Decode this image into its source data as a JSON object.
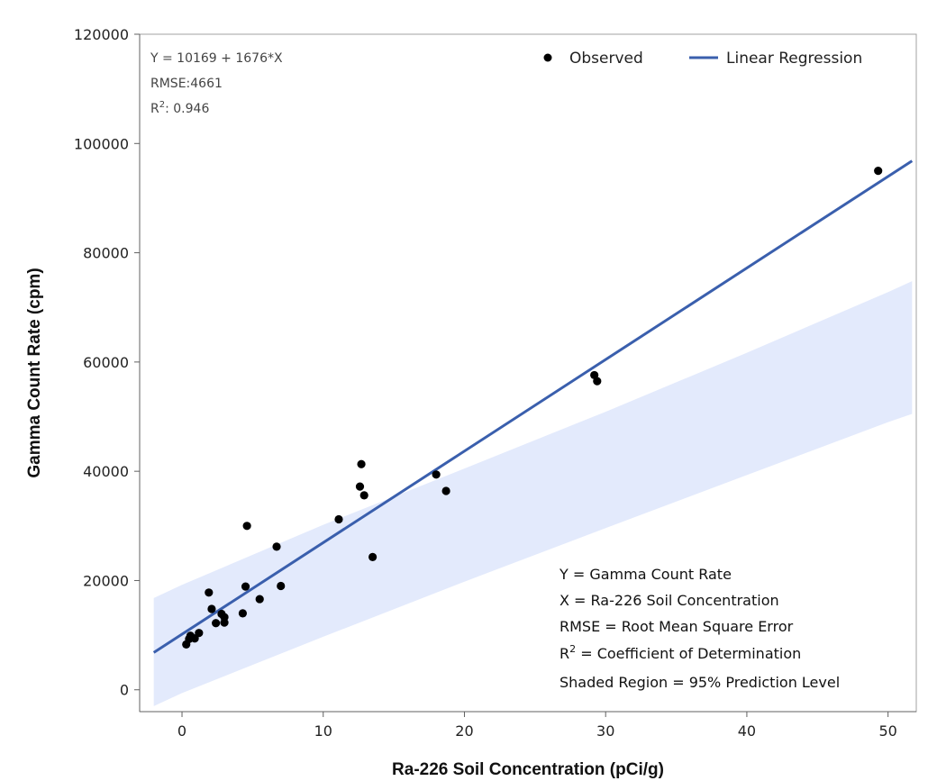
{
  "chart_data": {
    "type": "scatter",
    "xlabel": "Ra-226 Soil Concentration (pCi/g)",
    "ylabel": "Gamma Count Rate (cpm)",
    "xlim": [
      -3,
      52
    ],
    "ylim": [
      -4000,
      120000
    ],
    "x_ticks": [
      0,
      10,
      20,
      30,
      40,
      50
    ],
    "y_ticks": [
      0,
      20000,
      40000,
      60000,
      80000,
      100000,
      120000
    ],
    "grid": false,
    "legend_position": "top-right",
    "legend": [
      {
        "label": "Observed",
        "kind": "marker"
      },
      {
        "label": "Linear Regression",
        "kind": "line"
      }
    ],
    "series": [
      {
        "name": "Observed",
        "kind": "scatter",
        "color": "#000000",
        "points": [
          [
            0.3,
            8300
          ],
          [
            0.5,
            9300
          ],
          [
            0.6,
            9900
          ],
          [
            0.9,
            9400
          ],
          [
            1.2,
            10400
          ],
          [
            1.9,
            17800
          ],
          [
            2.1,
            14800
          ],
          [
            2.4,
            12200
          ],
          [
            2.8,
            13900
          ],
          [
            3.0,
            12300
          ],
          [
            3.0,
            13300
          ],
          [
            4.3,
            14000
          ],
          [
            4.5,
            18900
          ],
          [
            4.6,
            30000
          ],
          [
            5.5,
            16600
          ],
          [
            6.7,
            26200
          ],
          [
            7.0,
            19000
          ],
          [
            11.1,
            31200
          ],
          [
            12.6,
            37200
          ],
          [
            12.7,
            41300
          ],
          [
            12.9,
            35600
          ],
          [
            13.5,
            24300
          ],
          [
            18.0,
            39400
          ],
          [
            18.7,
            36400
          ],
          [
            29.2,
            57600
          ],
          [
            29.4,
            56500
          ],
          [
            49.3,
            95000
          ]
        ]
      },
      {
        "name": "Linear Regression",
        "kind": "line",
        "color": "#3a5fad",
        "intercept": 10169,
        "slope": 1676
      },
      {
        "name": "95% Prediction Level",
        "kind": "band",
        "color": "#e3eafc",
        "x": [
          -2,
          0,
          10,
          20,
          30,
          40,
          50,
          51.7
        ],
        "lower": [
          -3000,
          -600,
          9700,
          19800,
          29600,
          39300,
          49000,
          50500
        ],
        "upper": [
          16800,
          19200,
          30200,
          40500,
          50900,
          61700,
          72800,
          74800
        ]
      }
    ],
    "stats": {
      "equation": "Y = 10169 + 1676*X",
      "rmse": "RMSE:4661",
      "r2_prefix": "R",
      "r2_sup": "2",
      "r2_value": ": 0.946"
    },
    "notes": {
      "line1": "Y = Gamma Count Rate",
      "line2": "X = Ra-226 Soil Concentration",
      "line3": "RMSE = Root Mean Square Error",
      "line4_prefix": "R",
      "line4_sup": "2",
      "line4_rest": " = Coefficient of Determination",
      "line5": "Shaded Region = 95% Prediction Level"
    }
  }
}
